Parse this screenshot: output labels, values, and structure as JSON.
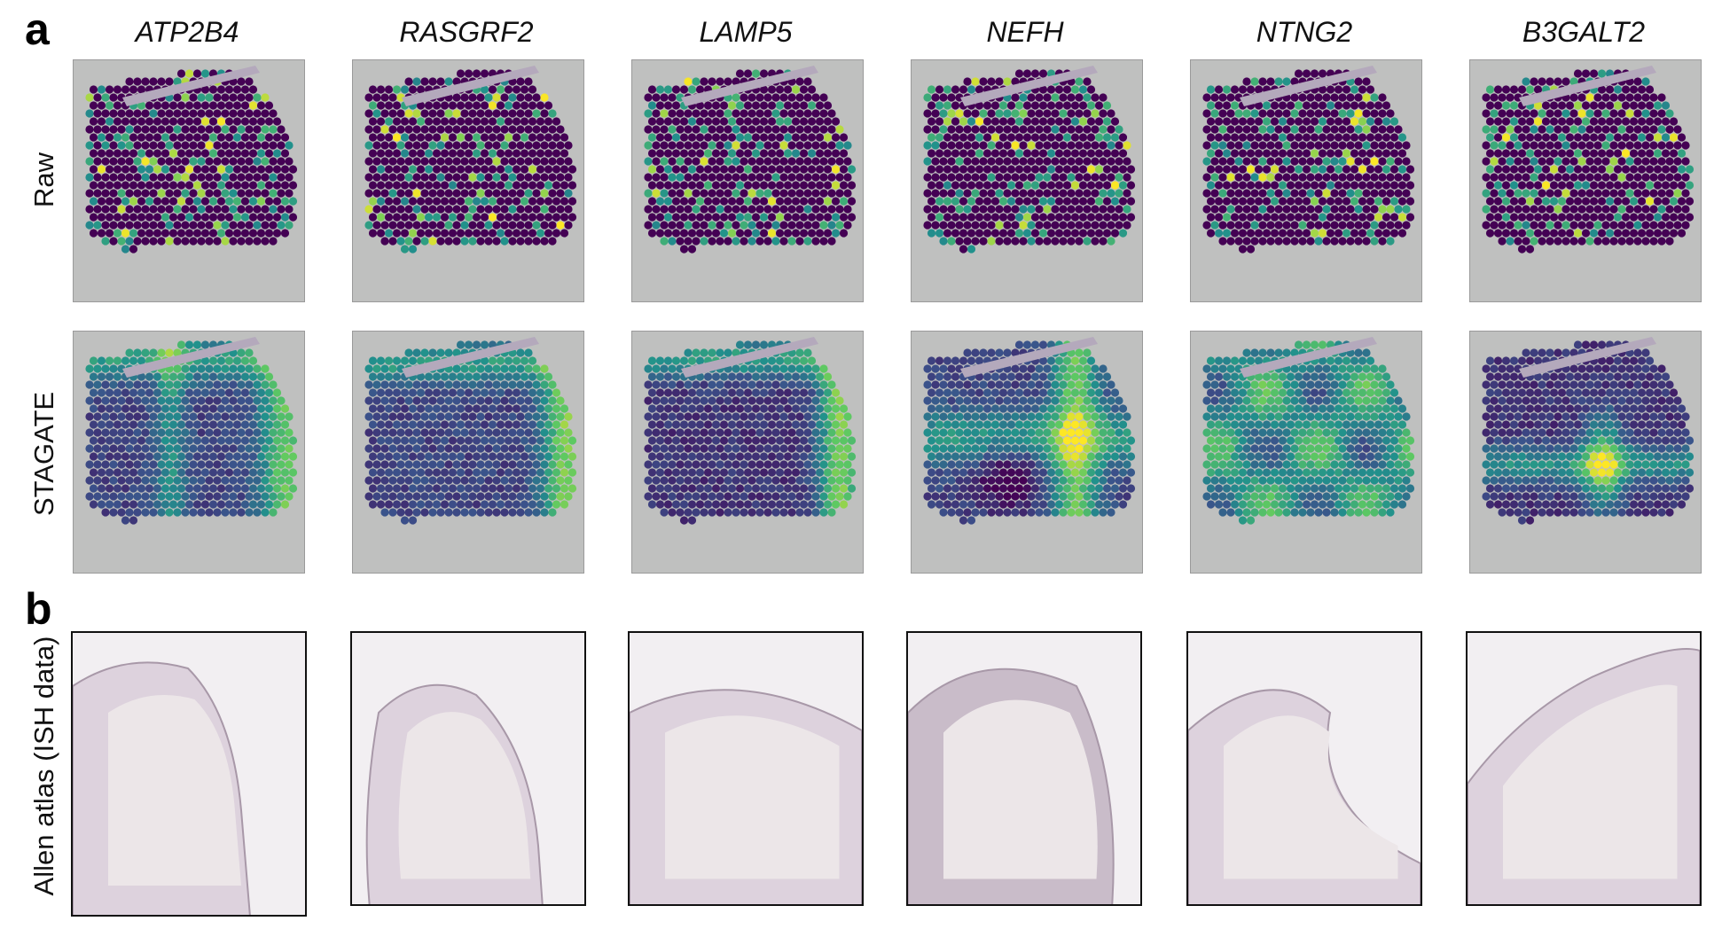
{
  "panels": {
    "a": "a",
    "b": "b"
  },
  "genes": [
    "ATP2B4",
    "RASGRF2",
    "LAMP5",
    "NEFH",
    "NTNG2",
    "B3GALT2"
  ],
  "row_labels": {
    "raw": "Raw",
    "stagate": "STAGATE",
    "allen": "Allen atlas (ISH data)"
  },
  "colors": {
    "viridis_low": "#440154",
    "viridis_mid": "#21918c",
    "viridis_high": "#fde725",
    "tile_bg": "#bfc0bf",
    "ish_bg": "#f2eff2",
    "ish_tissue": "#d9ccd9"
  }
}
